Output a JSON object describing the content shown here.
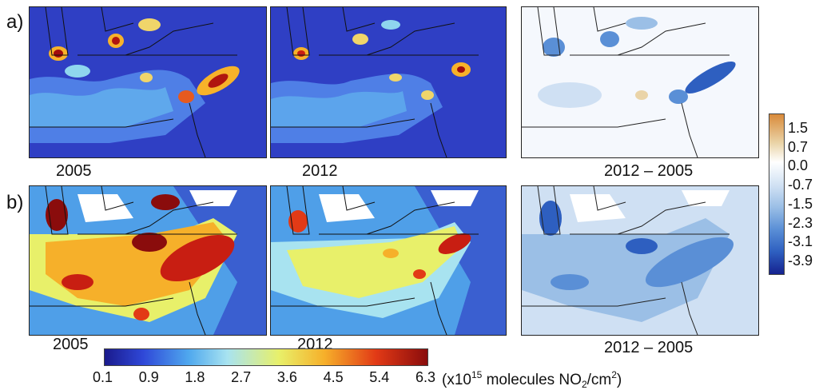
{
  "rows": [
    {
      "label": "a)",
      "captions": [
        "2005",
        "2012",
        "2012 – 2005"
      ]
    },
    {
      "label": "b)",
      "captions": [
        "2005",
        "2012",
        "2012 – 2005"
      ]
    }
  ],
  "diff_colorbar": {
    "ticks": [
      "1.5",
      "0.7",
      "0.0",
      "-0.7",
      "-1.5",
      "-2.3",
      "-3.1",
      "-3.9"
    ],
    "colors": [
      "#d98a3a",
      "#ead4a8",
      "#ffffff",
      "#cfe0f3",
      "#9bbfe6",
      "#5a8fd6",
      "#2e5fc0",
      "#15228f"
    ]
  },
  "abs_colorbar": {
    "ticks": [
      "0.1",
      "0.9",
      "1.8",
      "2.7",
      "3.6",
      "4.5",
      "5.4",
      "6.3"
    ],
    "colors": [
      "#1a1a8c",
      "#2f48d8",
      "#4fa8ee",
      "#a8e3f0",
      "#e8f06a",
      "#f6b02a",
      "#e23a16",
      "#8a0c0c"
    ],
    "units_prefix": "(x10",
    "units_exp": "15",
    "units_mid": " molecules NO",
    "units_sub": "2",
    "units_suffix": "/cm",
    "units_sup2": "2",
    "units_close": ")"
  }
}
